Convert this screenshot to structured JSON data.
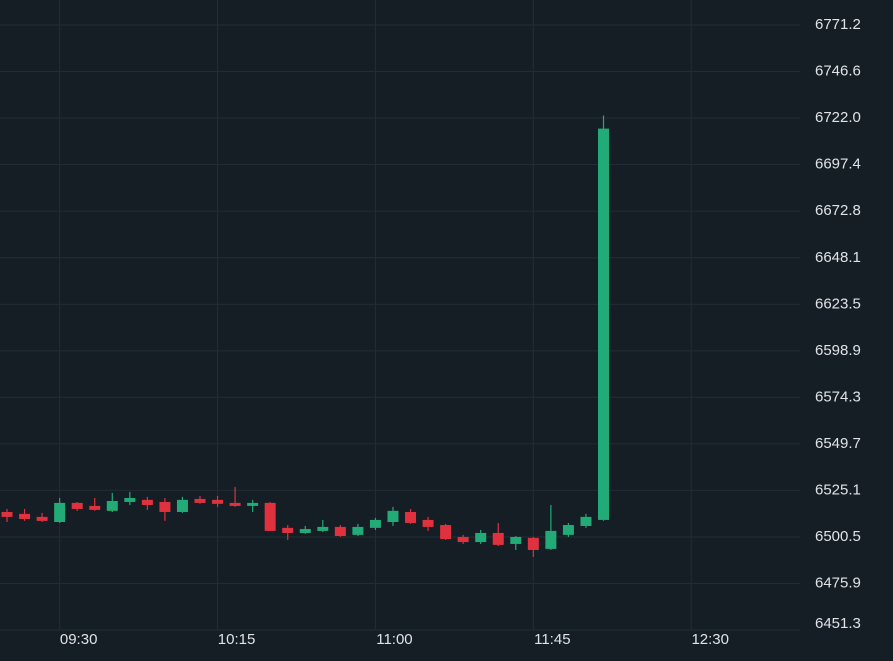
{
  "chart_data": {
    "type": "candlestick",
    "x": [
      "09:15",
      "09:20",
      "09:25",
      "09:30",
      "09:35",
      "09:40",
      "09:45",
      "09:50",
      "09:55",
      "10:00",
      "10:05",
      "10:10",
      "10:15",
      "10:20",
      "10:25",
      "10:30",
      "10:35",
      "10:40",
      "10:45",
      "10:50",
      "10:55",
      "11:00",
      "11:05",
      "11:10",
      "11:15",
      "11:20",
      "11:25",
      "11:30",
      "11:35",
      "11:40",
      "11:45",
      "11:50",
      "11:55",
      "12:00",
      "12:05"
    ],
    "open": [
      6513.7,
      6512.7,
      6511.1,
      6508.4,
      6518.5,
      6516.9,
      6514.3,
      6519.0,
      6520.1,
      6519.0,
      6513.7,
      6520.6,
      6520.1,
      6518.5,
      6516.9,
      6518.5,
      6505.3,
      6502.6,
      6503.7,
      6505.8,
      6501.6,
      6505.3,
      6508.4,
      6513.7,
      6509.5,
      6506.8,
      6500.5,
      6497.8,
      6502.6,
      6496.8,
      6500.0,
      6494.2,
      6501.6,
      6506.3,
      6509.5
    ],
    "high": [
      6515.3,
      6515.3,
      6513.2,
      6521.1,
      6519.0,
      6521.1,
      6523.8,
      6524.3,
      6521.7,
      6521.1,
      6521.7,
      6522.2,
      6522.2,
      6526.9,
      6520.1,
      6519.0,
      6506.8,
      6506.3,
      6509.5,
      6506.8,
      6507.4,
      6510.6,
      6516.4,
      6515.3,
      6511.1,
      6507.4,
      6501.6,
      6504.2,
      6507.9,
      6501.0,
      6500.5,
      6517.4,
      6507.9,
      6512.7,
      6723.3
    ],
    "low": [
      6508.4,
      6509.0,
      6508.4,
      6507.9,
      6514.3,
      6514.3,
      6513.7,
      6517.4,
      6514.8,
      6509.0,
      6513.2,
      6518.0,
      6516.4,
      6516.4,
      6513.7,
      6503.7,
      6498.9,
      6502.1,
      6503.1,
      6500.5,
      6501.0,
      6504.2,
      6506.3,
      6507.4,
      6503.7,
      6498.9,
      6496.8,
      6496.8,
      6495.7,
      6493.6,
      6489.9,
      6493.6,
      6500.5,
      6505.3,
      6509.0
    ],
    "close": [
      6511.1,
      6510.0,
      6509.0,
      6518.5,
      6515.3,
      6514.8,
      6519.5,
      6521.1,
      6517.4,
      6513.7,
      6520.1,
      6518.5,
      6518.0,
      6516.9,
      6518.5,
      6503.7,
      6502.6,
      6504.7,
      6505.8,
      6501.0,
      6505.8,
      6509.5,
      6514.3,
      6507.9,
      6505.8,
      6499.4,
      6497.8,
      6502.6,
      6496.3,
      6500.5,
      6493.6,
      6503.7,
      6506.8,
      6511.1,
      6716.4
    ],
    "up_color": "#22ab76",
    "down_color": "#e0313f",
    "xlim": [
      "09:13",
      "13:01"
    ],
    "xticks": [
      "09:30",
      "10:15",
      "11:00",
      "11:45",
      "12:30"
    ],
    "ylim": [
      6451.3,
      6784.4
    ],
    "yticks": [
      6451.3,
      6475.9,
      6500.5,
      6525.1,
      6549.7,
      6574.3,
      6598.9,
      6623.5,
      6648.1,
      6672.8,
      6697.4,
      6722.0,
      6746.6,
      6771.2
    ],
    "grid": true
  }
}
